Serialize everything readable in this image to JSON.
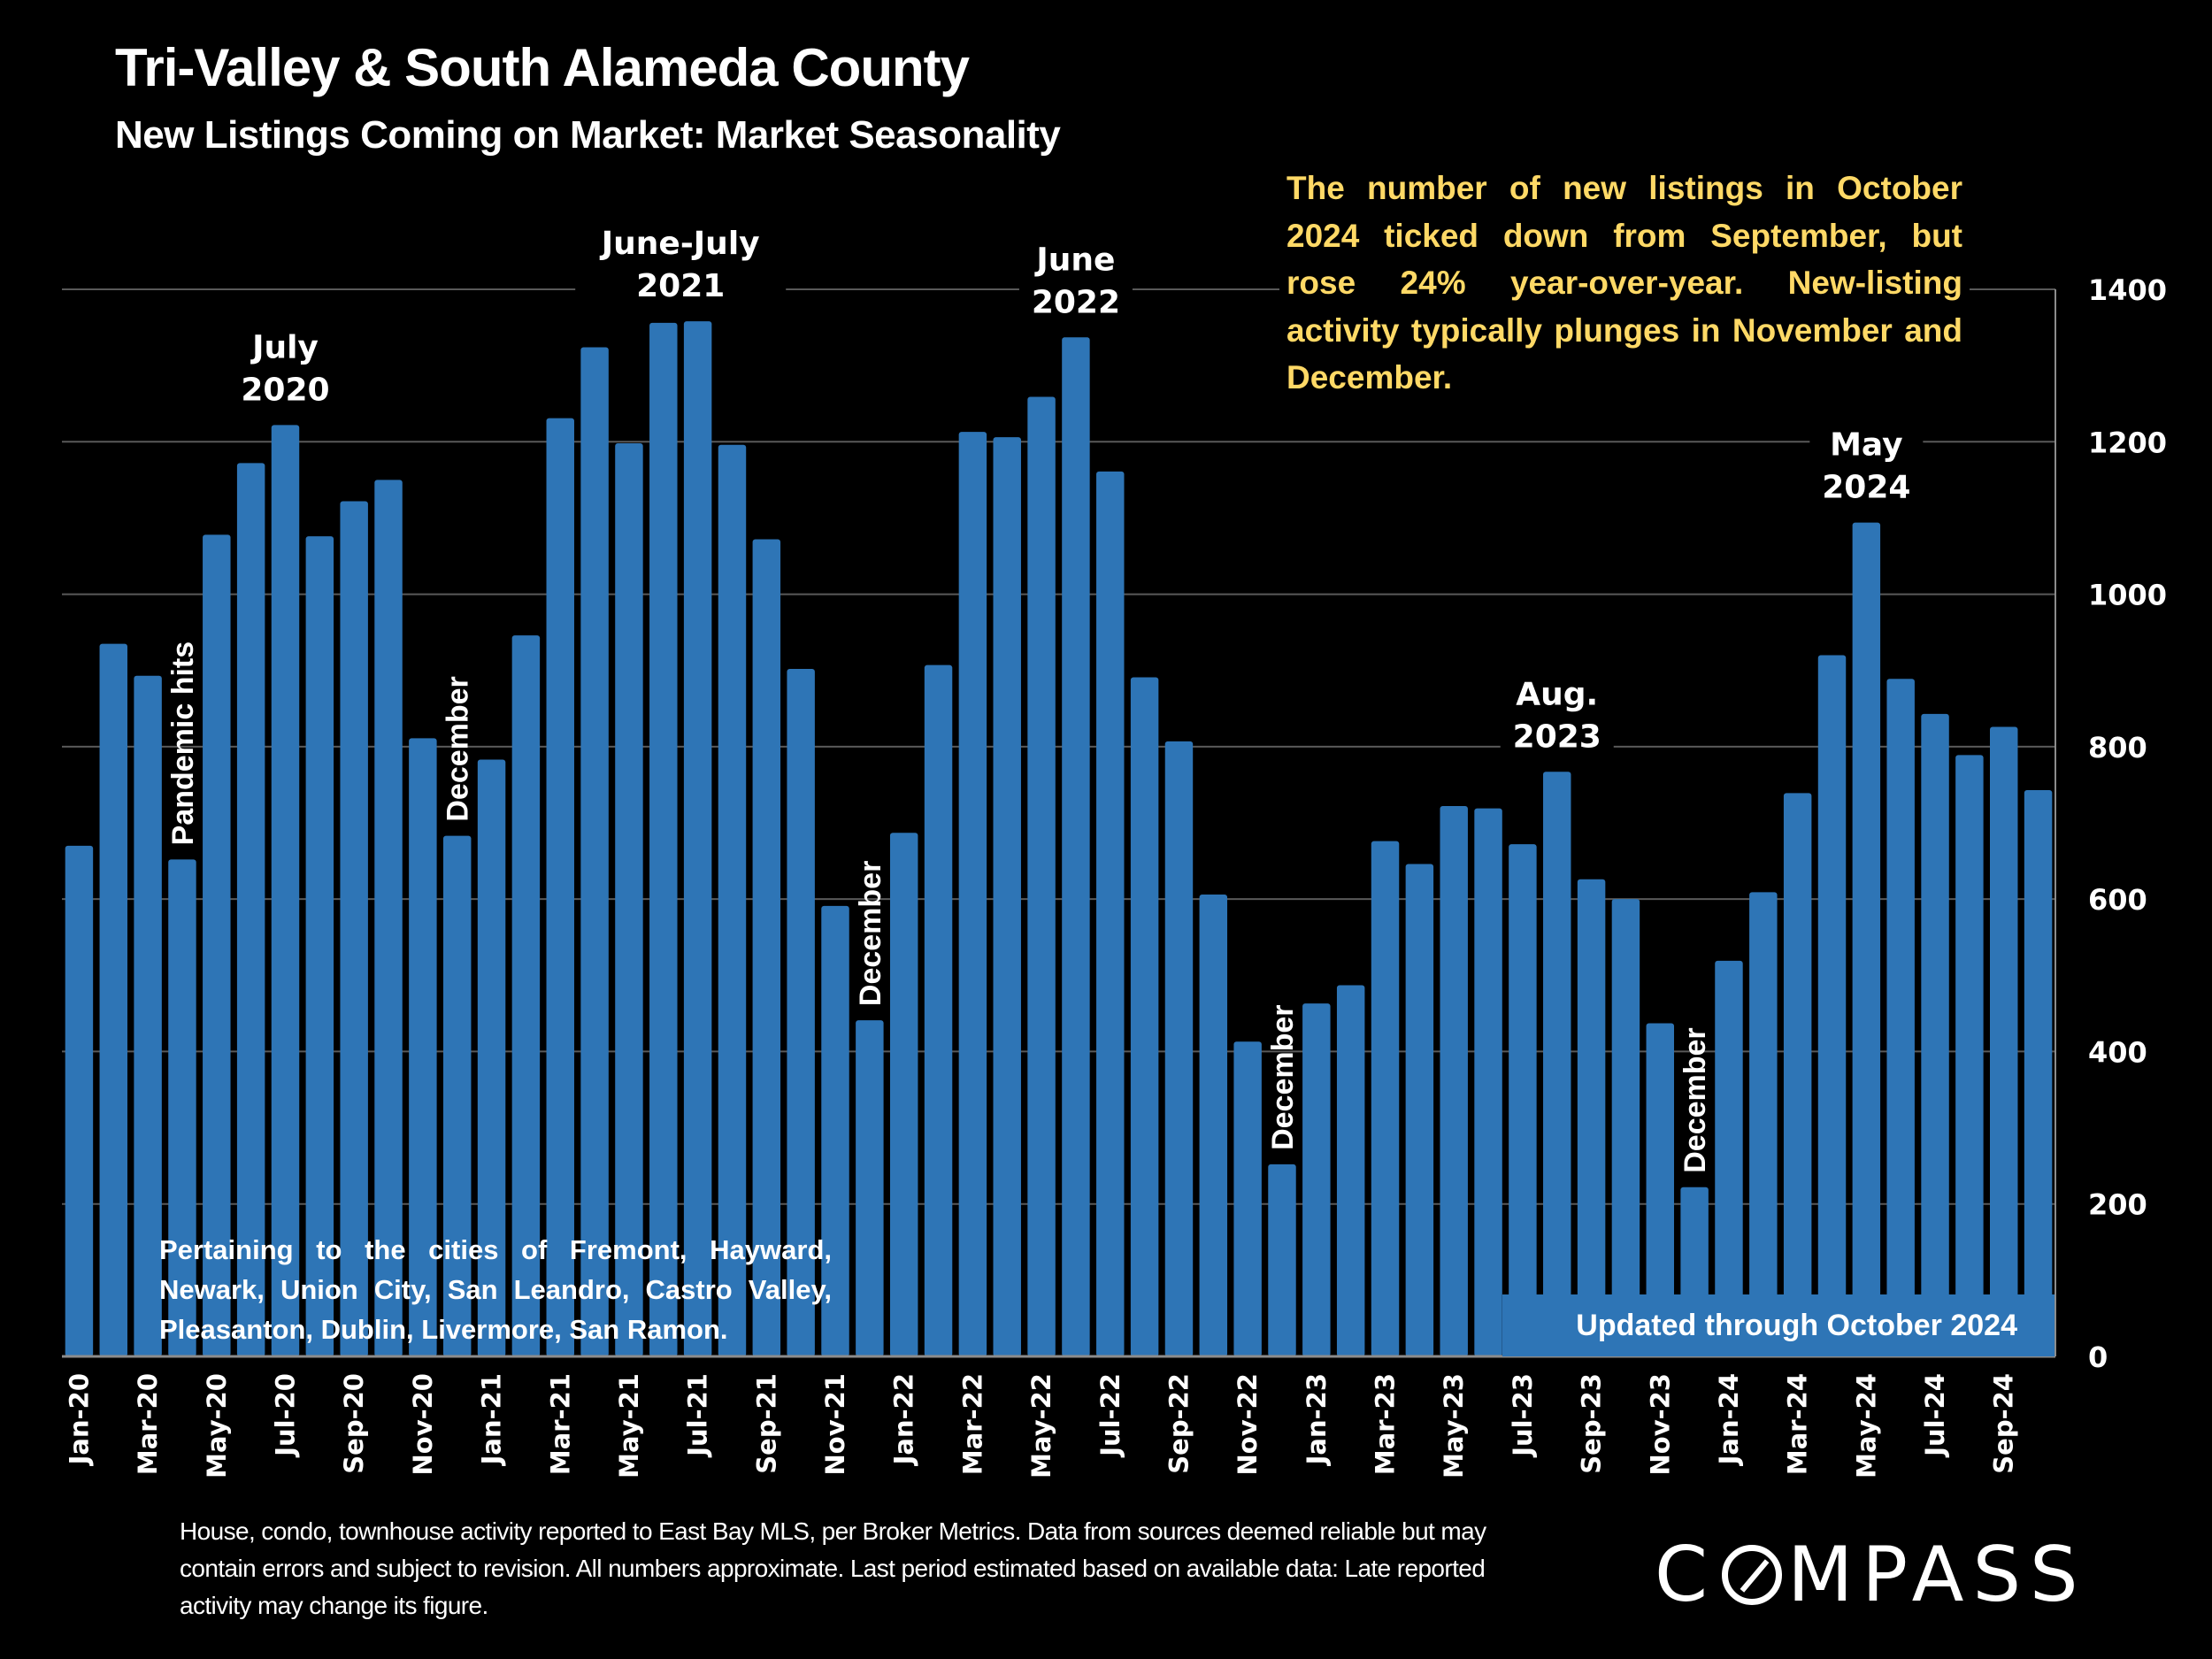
{
  "header": {
    "title": "Tri-Valley & South Alameda County",
    "subtitle": "New Listings Coming on Market: Market Seasonality"
  },
  "annotation": "The number of new listings in October 2024 ticked down from September, but rose 24% year-over-year. New-listing activity typically plunges in November and December.",
  "cities_note": "Pertaining to the cities of Fremont, Hayward, Newark, Union City, San Leandro, Castro Valley, Pleasanton, Dublin, Livermore, San Ramon.",
  "updated_note": "Updated through October 2024",
  "footer": "House, condo, townhouse activity reported to East Bay MLS, per Broker Metrics. Data from sources deemed reliable but may contain errors and subject to revision. All numbers approximate. Last period estimated based on available data: Late reported activity may change its figure.",
  "logo": {
    "before": "C",
    "after": "MPASS",
    "icon": "compass-o-icon"
  },
  "colors": {
    "bar": "#2E75B6",
    "annotation": "#FFD966",
    "gridline": "#595959",
    "background": "#000000"
  },
  "chart_data": {
    "type": "bar",
    "title": "New Listings Coming on Market: Market Seasonality",
    "xlabel": "",
    "ylabel": "",
    "ylim": [
      0,
      1400
    ],
    "yticks": [
      0,
      200,
      400,
      600,
      800,
      1000,
      1200,
      1400
    ],
    "yaxis_side": "right",
    "grid": true,
    "categories": [
      "Jan-20",
      "Feb-20",
      "Mar-20",
      "Apr-20",
      "May-20",
      "Jun-20",
      "Jul-20",
      "Aug-20",
      "Sep-20",
      "Oct-20",
      "Nov-20",
      "Dec-20",
      "Jan-21",
      "Feb-21",
      "Mar-21",
      "Apr-21",
      "May-21",
      "Jun-21",
      "Jul-21",
      "Aug-21",
      "Sep-21",
      "Oct-21",
      "Nov-21",
      "Dec-21",
      "Jan-22",
      "Feb-22",
      "Mar-22",
      "Apr-22",
      "May-22",
      "Jun-22",
      "Jul-22",
      "Aug-22",
      "Sep-22",
      "Oct-22",
      "Nov-22",
      "Dec-22",
      "Jan-23",
      "Feb-23",
      "Mar-23",
      "Apr-23",
      "May-23",
      "Jun-23",
      "Jul-23",
      "Aug-23",
      "Sep-23",
      "Oct-23",
      "Nov-23",
      "Dec-23",
      "Jan-24",
      "Feb-24",
      "Mar-24",
      "Apr-24",
      "May-24",
      "Jun-24",
      "Jul-24",
      "Aug-24",
      "Sep-24",
      "Oct-24"
    ],
    "tick_labels_shown": [
      "Jan-20",
      "Mar-20",
      "May-20",
      "Jul-20",
      "Sep-20",
      "Nov-20",
      "Jan-21",
      "Mar-21",
      "May-21",
      "Jul-21",
      "Sep-21",
      "Nov-21",
      "Jan-22",
      "Mar-22",
      "May-22",
      "Jul-22",
      "Sep-22",
      "Nov-22",
      "Jan-23",
      "Mar-23",
      "May-23",
      "Jul-23",
      "Sep-23",
      "Nov-23",
      "Jan-24",
      "Mar-24",
      "May-24",
      "Jul-24",
      "Sep-24"
    ],
    "values": [
      670,
      935,
      893,
      652,
      1078,
      1172,
      1222,
      1076,
      1122,
      1150,
      811,
      683,
      783,
      946,
      1231,
      1324,
      1198,
      1356,
      1358,
      1196,
      1072,
      902,
      591,
      441,
      687,
      907,
      1213,
      1206,
      1259,
      1337,
      1161,
      891,
      807,
      606,
      413,
      252,
      463,
      487,
      676,
      646,
      722,
      719,
      672,
      767,
      626,
      600,
      437,
      222,
      519,
      609,
      739,
      920,
      1094,
      889,
      843,
      789,
      826,
      743
    ],
    "annotations": [
      {
        "category": "Jul-20",
        "lines": [
          "July",
          "2020"
        ],
        "style": "peak"
      },
      {
        "category": "Jun-21",
        "lines": [
          "June-July",
          "2021"
        ],
        "style": "peak",
        "span_to": "Jul-21"
      },
      {
        "category": "Jun-22",
        "lines": [
          "June",
          "2022"
        ],
        "style": "peak"
      },
      {
        "category": "Aug-23",
        "lines": [
          "Aug.",
          "2023"
        ],
        "style": "peak"
      },
      {
        "category": "May-24",
        "lines": [
          "May",
          "2024"
        ],
        "style": "peak"
      },
      {
        "category": "Apr-20",
        "text": "Pandemic hits",
        "style": "vertical"
      },
      {
        "category": "Dec-20",
        "text": "December",
        "style": "vertical"
      },
      {
        "category": "Dec-21",
        "text": "December",
        "style": "vertical"
      },
      {
        "category": "Dec-22",
        "text": "December",
        "style": "vertical"
      },
      {
        "category": "Dec-23",
        "text": "December",
        "style": "vertical"
      }
    ]
  }
}
